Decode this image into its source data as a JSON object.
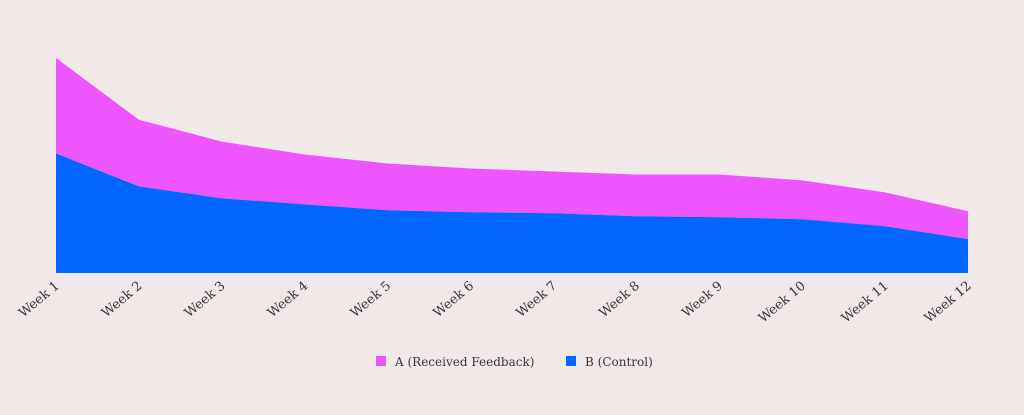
{
  "chart_data": {
    "type": "area",
    "stacked": true,
    "title": "",
    "xlabel": "",
    "ylabel": "",
    "categories": [
      "Week 1",
      "Week 2",
      "Week 3",
      "Week 4",
      "Week 5",
      "Week 6",
      "Week 7",
      "Week 8",
      "Week 9",
      "Week 10",
      "Week 11",
      "Week 12"
    ],
    "series": [
      {
        "name": "B (Control)",
        "color": "#0066ff",
        "values": [
          120,
          87,
          75,
          69,
          63,
          61,
          60,
          57,
          56,
          54,
          47,
          34
        ]
      },
      {
        "name": "A (Received Feedback)",
        "color": "#ee55ff",
        "values": [
          96,
          67,
          57,
          50,
          47,
          44,
          42,
          42,
          43,
          39,
          34,
          28
        ]
      }
    ],
    "ylim": [
      0,
      220
    ],
    "grid": false,
    "axes_visible": false,
    "legend": {
      "position": "bottom-center",
      "items": [
        {
          "label": "A (Received Feedback)",
          "color": "#ee55ff"
        },
        {
          "label": "B (Control)",
          "color": "#0066ff"
        }
      ]
    }
  }
}
